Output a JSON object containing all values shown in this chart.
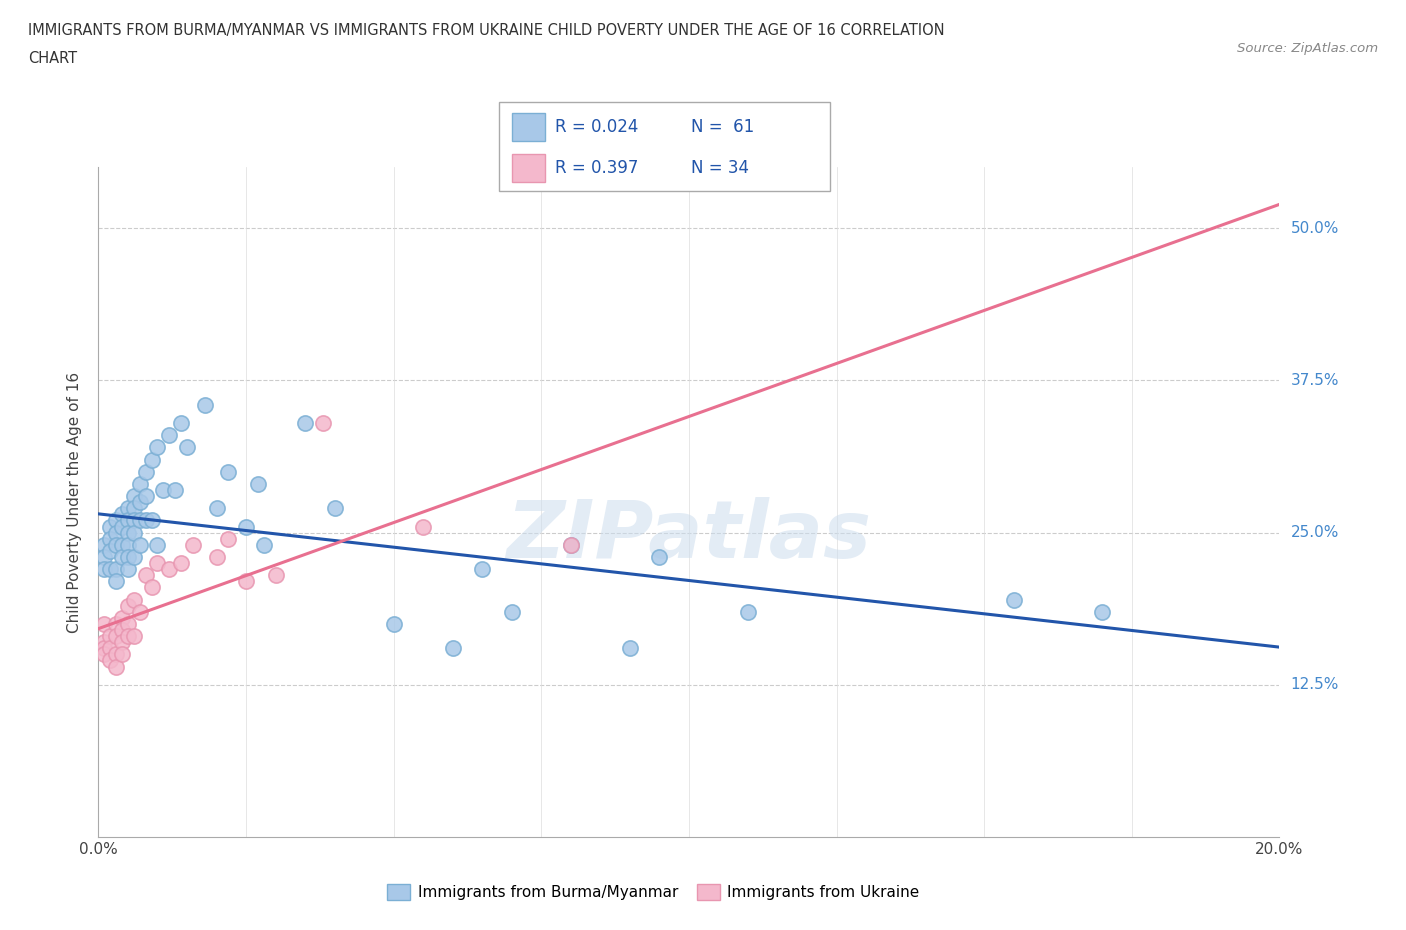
{
  "title_line1": "IMMIGRANTS FROM BURMA/MYANMAR VS IMMIGRANTS FROM UKRAINE CHILD POVERTY UNDER THE AGE OF 16 CORRELATION",
  "title_line2": "CHART",
  "source": "Source: ZipAtlas.com",
  "ylabel": "Child Poverty Under the Age of 16",
  "xlim": [
    0.0,
    0.2
  ],
  "ylim": [
    0.0,
    0.55
  ],
  "x_tick_positions": [
    0.0,
    0.025,
    0.05,
    0.075,
    0.1,
    0.125,
    0.15,
    0.175,
    0.2
  ],
  "x_tick_labels": [
    "0.0%",
    "",
    "",
    "",
    "",
    "",
    "",
    "",
    "20.0%"
  ],
  "y_tick_positions": [
    0.0,
    0.125,
    0.25,
    0.375,
    0.5
  ],
  "y_tick_labels_right": [
    "",
    "12.5%",
    "25.0%",
    "37.5%",
    "50.0%"
  ],
  "color_burma": "#a8c8e8",
  "color_burma_edge": "#7bafd4",
  "color_ukraine": "#f4b8cc",
  "color_ukraine_edge": "#e896b0",
  "color_burma_line": "#2255aa",
  "color_ukraine_line": "#e87090",
  "watermark": "ZIPatlas",
  "burma_x": [
    0.001,
    0.001,
    0.001,
    0.002,
    0.002,
    0.002,
    0.002,
    0.003,
    0.003,
    0.003,
    0.003,
    0.003,
    0.004,
    0.004,
    0.004,
    0.004,
    0.005,
    0.005,
    0.005,
    0.005,
    0.005,
    0.005,
    0.006,
    0.006,
    0.006,
    0.006,
    0.006,
    0.007,
    0.007,
    0.007,
    0.007,
    0.008,
    0.008,
    0.008,
    0.009,
    0.009,
    0.01,
    0.01,
    0.011,
    0.012,
    0.013,
    0.014,
    0.015,
    0.018,
    0.02,
    0.022,
    0.025,
    0.027,
    0.028,
    0.035,
    0.04,
    0.05,
    0.06,
    0.065,
    0.07,
    0.08,
    0.09,
    0.095,
    0.11,
    0.155,
    0.17
  ],
  "burma_y": [
    0.24,
    0.23,
    0.22,
    0.255,
    0.245,
    0.235,
    0.22,
    0.26,
    0.25,
    0.24,
    0.22,
    0.21,
    0.265,
    0.255,
    0.24,
    0.23,
    0.27,
    0.26,
    0.25,
    0.24,
    0.23,
    0.22,
    0.28,
    0.27,
    0.26,
    0.25,
    0.23,
    0.29,
    0.275,
    0.26,
    0.24,
    0.3,
    0.28,
    0.26,
    0.31,
    0.26,
    0.32,
    0.24,
    0.285,
    0.33,
    0.285,
    0.34,
    0.32,
    0.355,
    0.27,
    0.3,
    0.255,
    0.29,
    0.24,
    0.34,
    0.27,
    0.175,
    0.155,
    0.22,
    0.185,
    0.24,
    0.155,
    0.23,
    0.185,
    0.195,
    0.185
  ],
  "ukraine_x": [
    0.001,
    0.001,
    0.001,
    0.001,
    0.002,
    0.002,
    0.002,
    0.003,
    0.003,
    0.003,
    0.003,
    0.004,
    0.004,
    0.004,
    0.004,
    0.005,
    0.005,
    0.005,
    0.006,
    0.006,
    0.007,
    0.008,
    0.009,
    0.01,
    0.012,
    0.014,
    0.016,
    0.02,
    0.022,
    0.025,
    0.03,
    0.038,
    0.055,
    0.08
  ],
  "ukraine_y": [
    0.16,
    0.175,
    0.155,
    0.15,
    0.165,
    0.155,
    0.145,
    0.175,
    0.165,
    0.15,
    0.14,
    0.18,
    0.17,
    0.16,
    0.15,
    0.19,
    0.175,
    0.165,
    0.195,
    0.165,
    0.185,
    0.215,
    0.205,
    0.225,
    0.22,
    0.225,
    0.24,
    0.23,
    0.245,
    0.21,
    0.215,
    0.34,
    0.255,
    0.24
  ]
}
